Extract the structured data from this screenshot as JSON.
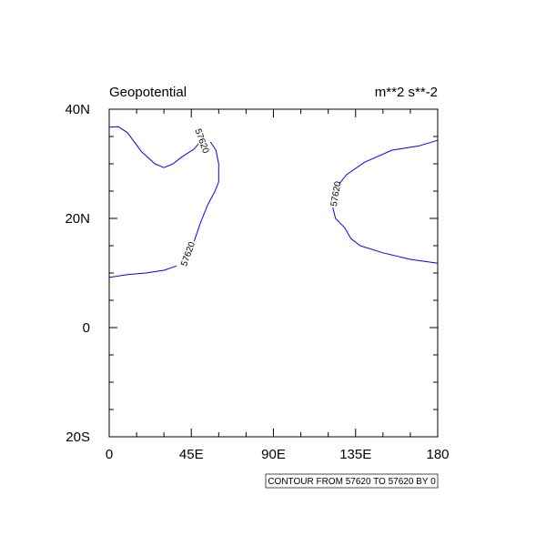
{
  "chart_data": {
    "type": "contour",
    "title_left": "Geopotential",
    "title_right": "m**2 s**-2",
    "xlim": [
      0,
      180
    ],
    "ylim": [
      -20,
      40
    ],
    "x_ticks": [
      0,
      45,
      90,
      135,
      180
    ],
    "x_tick_labels": [
      "0",
      "45E",
      "90E",
      "135E",
      "180"
    ],
    "y_ticks": [
      -20,
      0,
      20,
      40
    ],
    "y_tick_labels": [
      "20S",
      "0",
      "20N",
      "40N"
    ],
    "x_minor_step": 15,
    "y_minor_step": 5,
    "line_color": "#0000ff",
    "contour_info": "CONTOUR FROM 57620 TO 57620 BY 0",
    "contours": [
      {
        "level": "57620",
        "points": [
          [
            0,
            36.7
          ],
          [
            5,
            36.8
          ],
          [
            10,
            35.7
          ],
          [
            17.5,
            32.3
          ],
          [
            25,
            30
          ],
          [
            30,
            29.3
          ],
          [
            35,
            30
          ],
          [
            40,
            31.3
          ],
          [
            46.5,
            32.7
          ],
          [
            49,
            33.7
          ]
        ]
      },
      {
        "level": "57620",
        "points": [
          [
            55.5,
            34
          ],
          [
            58.5,
            32.5
          ],
          [
            60,
            30
          ],
          [
            60,
            26.7
          ],
          [
            58,
            25
          ],
          [
            54,
            22.5
          ],
          [
            50,
            19.2
          ],
          [
            46.5,
            15.8
          ]
        ]
      },
      {
        "level": "57620",
        "points": [
          [
            37,
            11.3
          ],
          [
            30,
            10.5
          ],
          [
            20,
            10
          ],
          [
            10,
            9.7
          ],
          [
            0,
            9.2
          ]
        ]
      },
      {
        "level": "57620",
        "points": [
          [
            180,
            34.3
          ],
          [
            170,
            33.3
          ],
          [
            155,
            32.5
          ],
          [
            140,
            30.3
          ],
          [
            130,
            28
          ],
          [
            126,
            26.3
          ]
        ]
      },
      {
        "level": "57620",
        "points": [
          [
            122.5,
            22
          ],
          [
            124,
            20
          ],
          [
            129,
            18.3
          ],
          [
            132.5,
            16.3
          ],
          [
            137.5,
            15
          ],
          [
            150,
            13.7
          ],
          [
            165,
            12.5
          ],
          [
            180,
            11.8
          ]
        ]
      }
    ],
    "contour_labels": [
      {
        "text": "57620",
        "lon": 51,
        "lat": 34.2,
        "angle": 70
      },
      {
        "text": "57620",
        "lon": 43,
        "lat": 13.5,
        "angle": -70
      },
      {
        "text": "57620",
        "lon": 124,
        "lat": 24.5,
        "angle": -80
      }
    ]
  }
}
